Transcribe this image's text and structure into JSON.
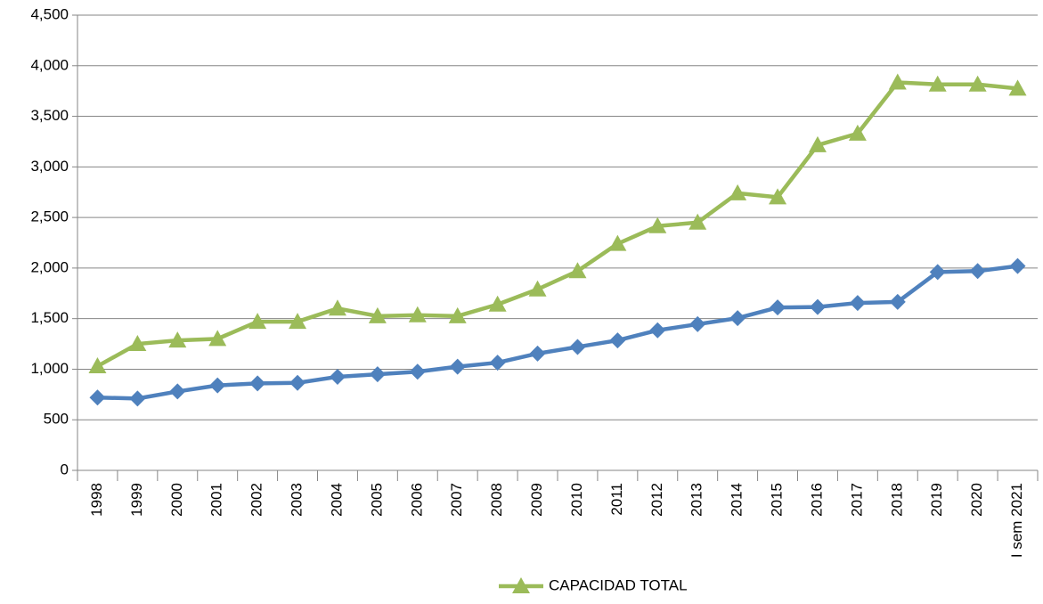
{
  "chart_data": {
    "type": "line",
    "categories": [
      "1998",
      "1999",
      "2000",
      "2001",
      "2002",
      "2003",
      "2004",
      "2005",
      "2006",
      "2007",
      "2008",
      "2009",
      "2010",
      "2011",
      "2012",
      "2013",
      "2014",
      "2015",
      "2016",
      "2017",
      "2018",
      "2019",
      "2020",
      "I sem 2021"
    ],
    "series": [
      {
        "color": "#4f81bd",
        "marker": "diamond",
        "values": [
          720,
          710,
          780,
          840,
          860,
          865,
          925,
          950,
          975,
          1025,
          1065,
          1155,
          1220,
          1285,
          1385,
          1445,
          1505,
          1610,
          1615,
          1655,
          1665,
          1960,
          1970,
          2020
        ]
      },
      {
        "name": "CAPACIDAD  TOTAL",
        "color": "#9bbb59",
        "marker": "triangle",
        "values": [
          1030,
          1250,
          1285,
          1300,
          1470,
          1470,
          1600,
          1525,
          1535,
          1525,
          1640,
          1790,
          1970,
          2240,
          2415,
          2450,
          2740,
          2700,
          3215,
          3330,
          3835,
          3815,
          3815,
          3775
        ]
      }
    ],
    "ylim": [
      0,
      4500
    ],
    "yticks": [
      0,
      500,
      {
        "value": 1000,
        "label": "1,000"
      },
      {
        "value": 1500,
        "label": "1,500"
      },
      {
        "value": 2000,
        "label": "2,000"
      },
      {
        "value": 2500,
        "label": "2,500"
      },
      {
        "value": 3000,
        "label": "3,000"
      },
      {
        "value": 3500,
        "label": "3,500"
      },
      {
        "value": 4000,
        "label": "4,000"
      },
      {
        "value": 4500,
        "label": "4,500"
      }
    ],
    "grid": true,
    "legend": "bottom"
  }
}
